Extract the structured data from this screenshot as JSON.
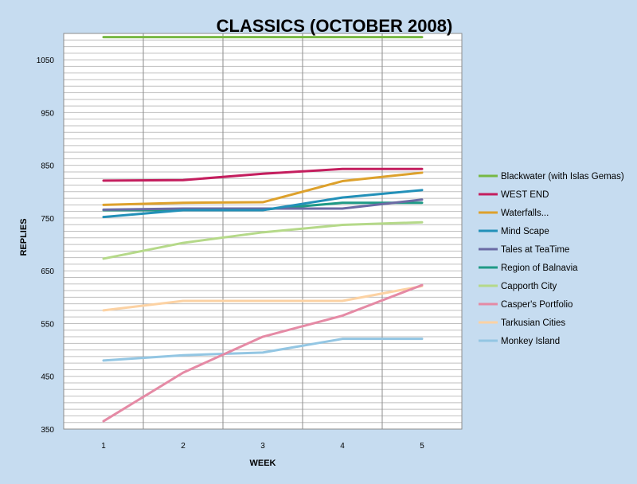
{
  "chart_data": {
    "type": "line",
    "title": "CLASSICS (OCTOBER 2008)",
    "xlabel": "WEEK",
    "ylabel": "REPLIES",
    "x": [
      1,
      2,
      3,
      4,
      5
    ],
    "ylim": [
      350,
      1100
    ],
    "yticks": [
      350,
      450,
      550,
      650,
      750,
      850,
      950,
      1050
    ],
    "grid": true,
    "legend_position": "right",
    "series": [
      {
        "name": "Blackwater (with Islas Gemas)",
        "color": "#77b843",
        "values": [
          1093,
          1093,
          1093,
          1093,
          1093
        ]
      },
      {
        "name": "WEST END",
        "color": "#c41e5e",
        "values": [
          821,
          822,
          834,
          843,
          843
        ]
      },
      {
        "name": "Waterfalls...",
        "color": "#dda12c",
        "values": [
          775,
          779,
          780,
          820,
          836
        ]
      },
      {
        "name": "Mind Scape",
        "color": "#2290b8",
        "values": [
          752,
          765,
          765,
          789,
          803
        ]
      },
      {
        "name": "Tales at TeaTime",
        "color": "#6a6aa4",
        "values": [
          766,
          768,
          768,
          768,
          785
        ]
      },
      {
        "name": "Region of Balnavia",
        "color": "#1f9a86",
        "values": [
          765,
          765,
          766,
          779,
          779
        ]
      },
      {
        "name": "Capporth City",
        "color": "#b5d989",
        "values": [
          673,
          703,
          723,
          737,
          742
        ]
      },
      {
        "name": "Casper's Portfolio",
        "color": "#e58aa5",
        "values": [
          365,
          457,
          525,
          565,
          623
        ]
      },
      {
        "name": "Tarkusian Cities",
        "color": "#fcd2a3",
        "values": [
          575,
          593,
          593,
          593,
          621
        ]
      },
      {
        "name": "Monkey Island",
        "color": "#93c6e3",
        "values": [
          480,
          490,
          495,
          521,
          521
        ]
      }
    ]
  }
}
